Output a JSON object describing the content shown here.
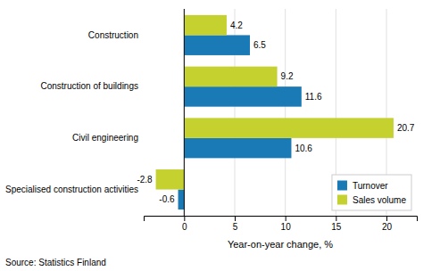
{
  "chart_data": {
    "type": "bar",
    "orientation": "horizontal",
    "categories": [
      "Construction",
      "Construction of buildings",
      "Civil engineering",
      "Specialised construction activities"
    ],
    "series": [
      {
        "name": "Turnover",
        "color": "#1a7ab5",
        "values": [
          6.5,
          11.6,
          10.6,
          -0.6
        ]
      },
      {
        "name": "Sales volume",
        "color": "#c5d12e",
        "values": [
          4.2,
          9.2,
          20.7,
          -2.8
        ]
      }
    ],
    "xlabel": "Year-on-year change, %",
    "xlim": [
      -4,
      23
    ],
    "xticks": [
      0,
      5,
      10,
      15,
      20
    ],
    "grid": true,
    "legend": "lower right",
    "data_labels": true,
    "annotations": [
      "Source: Statistics Finland"
    ]
  }
}
